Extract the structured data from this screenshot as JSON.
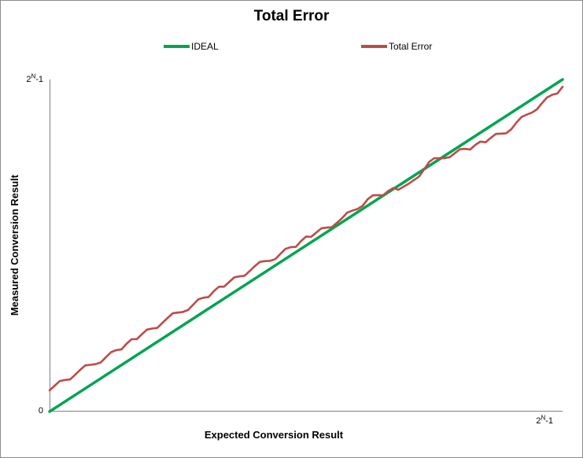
{
  "chart": {
    "axis_color": "#808080",
    "border_color": "#8c8c8c",
    "y_ticks": {
      "top": {
        "base": "2",
        "sup": "N",
        "suffix": "-1"
      },
      "bottom": "0"
    },
    "x_ticks": {
      "right": {
        "base": "2",
        "sup": "N",
        "suffix": "-1"
      }
    }
  },
  "chart_data": {
    "type": "line",
    "title": "Total Error",
    "xlabel": "Expected Conversion Result",
    "ylabel": "Measured Conversion Result",
    "x_range": [
      "0",
      "2^N-1"
    ],
    "y_range": [
      "0",
      "2^N-1"
    ],
    "axis_note": "Both axes run from 0 to full-scale code 2^N-1; point coordinates below are normalized fractions of full scale.",
    "grid": false,
    "legend_position": "top",
    "series": [
      {
        "name": "IDEAL",
        "color": "#00a550",
        "stroke_width": 3.5,
        "points": [
          [
            0,
            0
          ],
          [
            1,
            1
          ]
        ]
      },
      {
        "name": "Total Error",
        "color": "#be4b48",
        "stroke_width": 2.6,
        "points": [
          [
            0,
            0.064
          ],
          [
            0.01,
            0.078
          ],
          [
            0.02,
            0.092
          ],
          [
            0.03,
            0.095
          ],
          [
            0.04,
            0.097
          ],
          [
            0.05,
            0.111
          ],
          [
            0.06,
            0.126
          ],
          [
            0.07,
            0.139
          ],
          [
            0.08,
            0.141
          ],
          [
            0.09,
            0.143
          ],
          [
            0.1,
            0.148
          ],
          [
            0.11,
            0.164
          ],
          [
            0.12,
            0.179
          ],
          [
            0.13,
            0.185
          ],
          [
            0.14,
            0.187
          ],
          [
            0.15,
            0.204
          ],
          [
            0.16,
            0.218
          ],
          [
            0.17,
            0.218
          ],
          [
            0.18,
            0.233
          ],
          [
            0.19,
            0.247
          ],
          [
            0.2,
            0.25
          ],
          [
            0.21,
            0.252
          ],
          [
            0.22,
            0.267
          ],
          [
            0.23,
            0.282
          ],
          [
            0.24,
            0.296
          ],
          [
            0.25,
            0.298
          ],
          [
            0.26,
            0.3
          ],
          [
            0.27,
            0.306
          ],
          [
            0.28,
            0.322
          ],
          [
            0.29,
            0.338
          ],
          [
            0.3,
            0.343
          ],
          [
            0.31,
            0.345
          ],
          [
            0.32,
            0.362
          ],
          [
            0.33,
            0.376
          ],
          [
            0.34,
            0.376
          ],
          [
            0.35,
            0.39
          ],
          [
            0.36,
            0.404
          ],
          [
            0.37,
            0.407
          ],
          [
            0.38,
            0.409
          ],
          [
            0.39,
            0.423
          ],
          [
            0.4,
            0.438
          ],
          [
            0.41,
            0.451
          ],
          [
            0.42,
            0.453
          ],
          [
            0.43,
            0.454
          ],
          [
            0.44,
            0.459
          ],
          [
            0.45,
            0.475
          ],
          [
            0.46,
            0.49
          ],
          [
            0.47,
            0.495
          ],
          [
            0.48,
            0.496
          ],
          [
            0.49,
            0.513
          ],
          [
            0.5,
            0.527
          ],
          [
            0.51,
            0.526
          ],
          [
            0.52,
            0.539
          ],
          [
            0.53,
            0.552
          ],
          [
            0.54,
            0.554
          ],
          [
            0.55,
            0.555
          ],
          [
            0.56,
            0.568
          ],
          [
            0.57,
            0.582
          ],
          [
            0.58,
            0.599
          ],
          [
            0.59,
            0.605
          ],
          [
            0.6,
            0.61
          ],
          [
            0.61,
            0.619
          ],
          [
            0.62,
            0.639
          ],
          [
            0.63,
            0.651
          ],
          [
            0.64,
            0.652
          ],
          [
            0.65,
            0.651
          ],
          [
            0.66,
            0.664
          ],
          [
            0.67,
            0.673
          ],
          [
            0.68,
            0.668
          ],
          [
            0.69,
            0.677
          ],
          [
            0.7,
            0.686
          ],
          [
            0.71,
            0.697
          ],
          [
            0.72,
            0.707
          ],
          [
            0.73,
            0.729
          ],
          [
            0.74,
            0.752
          ],
          [
            0.75,
            0.763
          ],
          [
            0.76,
            0.763
          ],
          [
            0.77,
            0.763
          ],
          [
            0.78,
            0.766
          ],
          [
            0.79,
            0.778
          ],
          [
            0.8,
            0.79
          ],
          [
            0.81,
            0.791
          ],
          [
            0.82,
            0.789
          ],
          [
            0.83,
            0.803
          ],
          [
            0.84,
            0.813
          ],
          [
            0.85,
            0.811
          ],
          [
            0.86,
            0.824
          ],
          [
            0.87,
            0.836
          ],
          [
            0.88,
            0.837
          ],
          [
            0.89,
            0.838
          ],
          [
            0.9,
            0.85
          ],
          [
            0.91,
            0.87
          ],
          [
            0.92,
            0.887
          ],
          [
            0.93,
            0.894
          ],
          [
            0.94,
            0.9
          ],
          [
            0.95,
            0.91
          ],
          [
            0.96,
            0.929
          ],
          [
            0.97,
            0.946
          ],
          [
            0.98,
            0.954
          ],
          [
            0.99,
            0.958
          ],
          [
            1,
            0.978
          ]
        ]
      }
    ]
  }
}
